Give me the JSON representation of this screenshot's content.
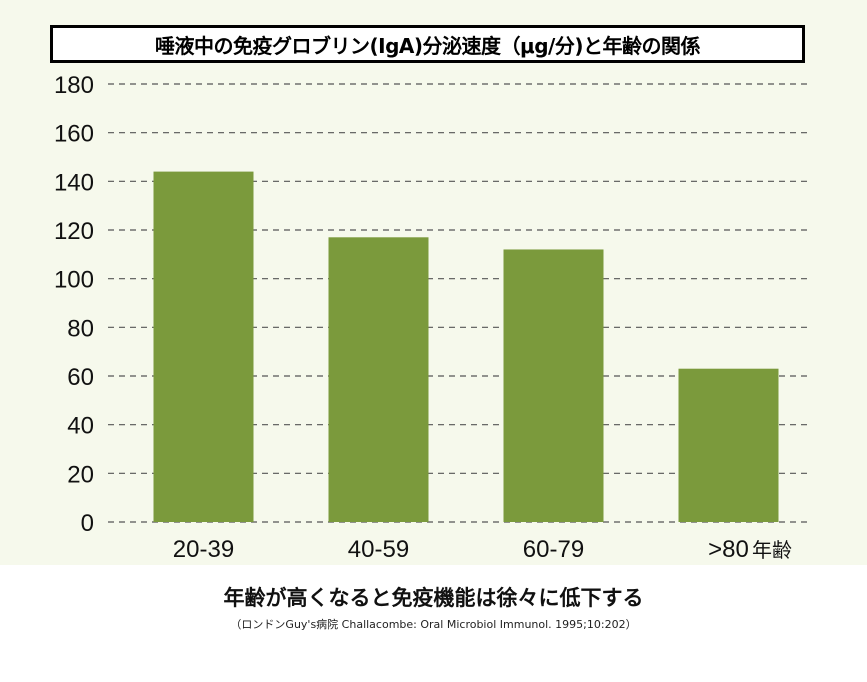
{
  "chart_data": {
    "type": "bar",
    "title": "唾液中の免疫グロブリン(IgA)分泌速度（μg/分)と年齢の関係",
    "categories": [
      "20-39",
      "40-59",
      "60-79",
      ">80"
    ],
    "values": [
      144,
      117,
      112,
      63
    ],
    "xlabel": "年齢",
    "ylabel": "",
    "ylim": [
      0,
      180
    ],
    "yticks": [
      0,
      20,
      40,
      60,
      80,
      100,
      120,
      140,
      160,
      180
    ],
    "grid": "dashed horizontal",
    "bar_color": "#7b9a3c",
    "background_color": "#f6f9ec"
  },
  "caption": "年齢が高くなると免疫機能は徐々に低下する",
  "source": "（ロンドンGuy's病院 Challacombe: Oral Microbiol Immunol. 1995;10:202）"
}
